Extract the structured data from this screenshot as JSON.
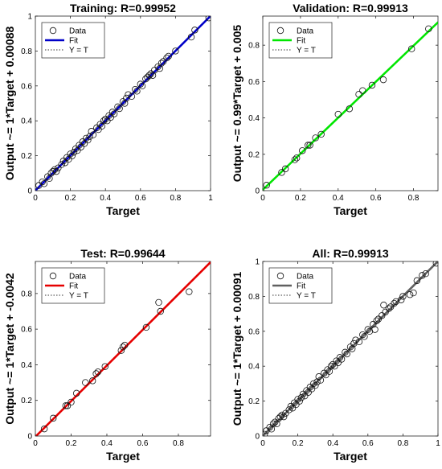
{
  "chart_data": [
    {
      "type": "scatter",
      "title": "Training: R=0.99952",
      "xlabel": "Target",
      "ylabel": "Output ~= 1*Target + 0.00088",
      "xlim": [
        0,
        1
      ],
      "ylim": [
        0,
        1
      ],
      "x_ticks": [
        "0",
        "0.2",
        "0.4",
        "0.6",
        "0.8",
        "1"
      ],
      "y_ticks": [
        "0",
        "0.2",
        "0.4",
        "0.6",
        "0.8",
        "1"
      ],
      "fit": {
        "slope": 1.0,
        "intercept": 0.00088,
        "color": "#0000c8"
      },
      "legend": {
        "position": "top-left",
        "entries": [
          "Data",
          "Fit",
          "Y = T"
        ]
      },
      "points": [
        [
          0.02,
          0.03
        ],
        [
          0.04,
          0.05
        ],
        [
          0.05,
          0.04
        ],
        [
          0.07,
          0.08
        ],
        [
          0.08,
          0.07
        ],
        [
          0.09,
          0.1
        ],
        [
          0.1,
          0.11
        ],
        [
          0.11,
          0.12
        ],
        [
          0.12,
          0.11
        ],
        [
          0.13,
          0.13
        ],
        [
          0.15,
          0.15
        ],
        [
          0.16,
          0.17
        ],
        [
          0.17,
          0.16
        ],
        [
          0.18,
          0.19
        ],
        [
          0.19,
          0.18
        ],
        [
          0.2,
          0.21
        ],
        [
          0.21,
          0.2
        ],
        [
          0.22,
          0.22
        ],
        [
          0.23,
          0.24
        ],
        [
          0.24,
          0.23
        ],
        [
          0.25,
          0.26
        ],
        [
          0.26,
          0.25
        ],
        [
          0.27,
          0.28
        ],
        [
          0.28,
          0.27
        ],
        [
          0.29,
          0.3
        ],
        [
          0.3,
          0.29
        ],
        [
          0.31,
          0.31
        ],
        [
          0.32,
          0.34
        ],
        [
          0.33,
          0.32
        ],
        [
          0.35,
          0.36
        ],
        [
          0.36,
          0.35
        ],
        [
          0.37,
          0.38
        ],
        [
          0.38,
          0.37
        ],
        [
          0.39,
          0.4
        ],
        [
          0.4,
          0.41
        ],
        [
          0.41,
          0.4
        ],
        [
          0.42,
          0.43
        ],
        [
          0.43,
          0.42
        ],
        [
          0.44,
          0.45
        ],
        [
          0.45,
          0.44
        ],
        [
          0.47,
          0.48
        ],
        [
          0.48,
          0.47
        ],
        [
          0.5,
          0.51
        ],
        [
          0.51,
          0.5
        ],
        [
          0.52,
          0.53
        ],
        [
          0.53,
          0.55
        ],
        [
          0.55,
          0.54
        ],
        [
          0.57,
          0.58
        ],
        [
          0.58,
          0.57
        ],
        [
          0.6,
          0.61
        ],
        [
          0.61,
          0.6
        ],
        [
          0.63,
          0.64
        ],
        [
          0.64,
          0.65
        ],
        [
          0.65,
          0.66
        ],
        [
          0.66,
          0.67
        ],
        [
          0.67,
          0.66
        ],
        [
          0.68,
          0.69
        ],
        [
          0.7,
          0.71
        ],
        [
          0.71,
          0.7
        ],
        [
          0.72,
          0.73
        ],
        [
          0.73,
          0.74
        ],
        [
          0.75,
          0.76
        ],
        [
          0.76,
          0.77
        ],
        [
          0.8,
          0.8
        ],
        [
          0.89,
          0.88
        ],
        [
          0.91,
          0.92
        ],
        [
          0.99,
          0.99
        ]
      ]
    },
    {
      "type": "scatter",
      "title": "Validation: R=0.99913",
      "xlabel": "Target",
      "ylabel": "Output ~= 0.99*Target + 0.005",
      "xlim": [
        0,
        0.93
      ],
      "ylim": [
        0,
        0.96
      ],
      "x_ticks": [
        "0",
        "0.2",
        "0.4",
        "0.6",
        "0.8"
      ],
      "y_ticks": [
        "0",
        "0.2",
        "0.4",
        "0.6",
        "0.8"
      ],
      "fit": {
        "slope": 0.99,
        "intercept": 0.005,
        "color": "#00e600"
      },
      "legend": {
        "position": "top-left",
        "entries": [
          "Data",
          "Fit",
          "Y = T"
        ]
      },
      "points": [
        [
          0.02,
          0.03
        ],
        [
          0.1,
          0.1
        ],
        [
          0.12,
          0.12
        ],
        [
          0.17,
          0.17
        ],
        [
          0.18,
          0.18
        ],
        [
          0.21,
          0.22
        ],
        [
          0.24,
          0.25
        ],
        [
          0.25,
          0.25
        ],
        [
          0.28,
          0.29
        ],
        [
          0.31,
          0.31
        ],
        [
          0.4,
          0.42
        ],
        [
          0.46,
          0.45
        ],
        [
          0.51,
          0.53
        ],
        [
          0.53,
          0.55
        ],
        [
          0.58,
          0.58
        ],
        [
          0.64,
          0.61
        ],
        [
          0.79,
          0.78
        ],
        [
          0.88,
          0.89
        ]
      ]
    },
    {
      "type": "scatter",
      "title": "Test: R=0.99644",
      "xlabel": "Target",
      "ylabel": "Output ~= 1*Target + -0.0042",
      "xlim": [
        0,
        0.98
      ],
      "ylim": [
        0,
        0.98
      ],
      "x_ticks": [
        "0",
        "0.2",
        "0.4",
        "0.6",
        "0.8"
      ],
      "y_ticks": [
        "0",
        "0.2",
        "0.4",
        "0.6",
        "0.8"
      ],
      "fit": {
        "slope": 1.0,
        "intercept": -0.0042,
        "color": "#e60000"
      },
      "legend": {
        "position": "top-left",
        "entries": [
          "Data",
          "Fit",
          "Y = T"
        ]
      },
      "points": [
        [
          0.05,
          0.04
        ],
        [
          0.1,
          0.1
        ],
        [
          0.17,
          0.17
        ],
        [
          0.18,
          0.17
        ],
        [
          0.2,
          0.19
        ],
        [
          0.23,
          0.24
        ],
        [
          0.28,
          0.3
        ],
        [
          0.32,
          0.31
        ],
        [
          0.34,
          0.35
        ],
        [
          0.35,
          0.36
        ],
        [
          0.39,
          0.39
        ],
        [
          0.48,
          0.48
        ],
        [
          0.49,
          0.5
        ],
        [
          0.5,
          0.51
        ],
        [
          0.62,
          0.61
        ],
        [
          0.7,
          0.7
        ],
        [
          0.69,
          0.75
        ],
        [
          0.86,
          0.81
        ]
      ]
    },
    {
      "type": "scatter",
      "title": "All: R=0.99913",
      "xlabel": "Target",
      "ylabel": "Output ~= 1*Target + 0.00091",
      "xlim": [
        0,
        1
      ],
      "ylim": [
        0,
        1
      ],
      "x_ticks": [
        "0",
        "0.2",
        "0.4",
        "0.6",
        "0.8",
        "1"
      ],
      "y_ticks": [
        "0",
        "0.2",
        "0.4",
        "0.6",
        "0.8",
        "1"
      ],
      "fit": {
        "slope": 1.0,
        "intercept": 0.00091,
        "color": "#606060"
      },
      "legend": {
        "position": "top-left",
        "entries": [
          "Data",
          "Fit",
          "Y = T"
        ]
      },
      "points": [
        [
          0.01,
          0.01
        ],
        [
          0.02,
          0.03
        ],
        [
          0.04,
          0.05
        ],
        [
          0.05,
          0.04
        ],
        [
          0.06,
          0.07
        ],
        [
          0.07,
          0.08
        ],
        [
          0.08,
          0.07
        ],
        [
          0.09,
          0.1
        ],
        [
          0.1,
          0.11
        ],
        [
          0.11,
          0.12
        ],
        [
          0.12,
          0.11
        ],
        [
          0.13,
          0.13
        ],
        [
          0.15,
          0.15
        ],
        [
          0.16,
          0.17
        ],
        [
          0.17,
          0.16
        ],
        [
          0.18,
          0.19
        ],
        [
          0.19,
          0.18
        ],
        [
          0.2,
          0.21
        ],
        [
          0.21,
          0.2
        ],
        [
          0.22,
          0.22
        ],
        [
          0.23,
          0.24
        ],
        [
          0.24,
          0.23
        ],
        [
          0.25,
          0.26
        ],
        [
          0.26,
          0.25
        ],
        [
          0.27,
          0.28
        ],
        [
          0.28,
          0.27
        ],
        [
          0.29,
          0.3
        ],
        [
          0.3,
          0.29
        ],
        [
          0.31,
          0.31
        ],
        [
          0.32,
          0.34
        ],
        [
          0.33,
          0.32
        ],
        [
          0.35,
          0.36
        ],
        [
          0.36,
          0.35
        ],
        [
          0.37,
          0.38
        ],
        [
          0.38,
          0.37
        ],
        [
          0.39,
          0.4
        ],
        [
          0.4,
          0.41
        ],
        [
          0.41,
          0.4
        ],
        [
          0.42,
          0.43
        ],
        [
          0.43,
          0.42
        ],
        [
          0.44,
          0.45
        ],
        [
          0.45,
          0.44
        ],
        [
          0.47,
          0.48
        ],
        [
          0.48,
          0.47
        ],
        [
          0.5,
          0.51
        ],
        [
          0.51,
          0.5
        ],
        [
          0.52,
          0.53
        ],
        [
          0.53,
          0.55
        ],
        [
          0.55,
          0.54
        ],
        [
          0.57,
          0.58
        ],
        [
          0.58,
          0.57
        ],
        [
          0.6,
          0.61
        ],
        [
          0.61,
          0.6
        ],
        [
          0.63,
          0.64
        ],
        [
          0.64,
          0.61
        ],
        [
          0.65,
          0.66
        ],
        [
          0.66,
          0.67
        ],
        [
          0.68,
          0.69
        ],
        [
          0.69,
          0.75
        ],
        [
          0.7,
          0.71
        ],
        [
          0.72,
          0.73
        ],
        [
          0.73,
          0.74
        ],
        [
          0.75,
          0.76
        ],
        [
          0.76,
          0.77
        ],
        [
          0.79,
          0.78
        ],
        [
          0.8,
          0.8
        ],
        [
          0.84,
          0.81
        ],
        [
          0.86,
          0.82
        ],
        [
          0.88,
          0.89
        ],
        [
          0.91,
          0.92
        ],
        [
          0.93,
          0.93
        ],
        [
          0.99,
          0.99
        ]
      ]
    }
  ]
}
